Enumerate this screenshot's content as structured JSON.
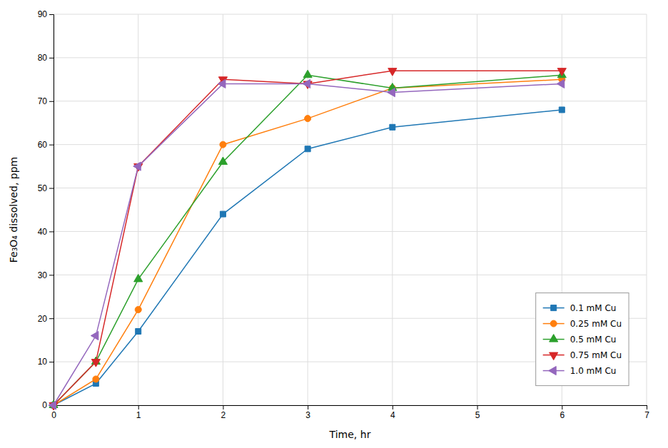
{
  "chart_data": {
    "type": "line",
    "xlabel": "Time, hr",
    "ylabel": "Fe₃O₄ dissolved, ppm",
    "x": [
      0,
      0.5,
      1,
      2,
      3,
      4,
      6
    ],
    "series": [
      {
        "name": "0.1 mM Cu",
        "marker": "square",
        "values": [
          0,
          5,
          17,
          44,
          59,
          64,
          68
        ]
      },
      {
        "name": "0.25 mM Cu",
        "marker": "circle",
        "values": [
          0,
          6,
          22,
          60,
          66,
          73,
          75
        ]
      },
      {
        "name": "0.5 mM Cu",
        "marker": "triangle-up",
        "values": [
          0,
          10,
          29,
          56,
          76,
          73,
          76
        ]
      },
      {
        "name": "0.75 mM Cu",
        "marker": "triangle-down",
        "values": [
          0,
          10,
          55,
          75,
          74,
          77,
          77
        ]
      },
      {
        "name": "1.0 mM Cu",
        "marker": "triangle-left",
        "values": [
          0,
          16,
          55,
          74,
          74,
          72,
          74
        ]
      }
    ],
    "xlim": [
      0,
      7
    ],
    "ylim": [
      0,
      90
    ],
    "xticks": [
      0,
      1,
      2,
      3,
      4,
      5,
      6,
      7
    ],
    "yticks": [
      0,
      10,
      20,
      30,
      40,
      50,
      60,
      70,
      80,
      90
    ],
    "grid": true,
    "legend": "lower right"
  }
}
